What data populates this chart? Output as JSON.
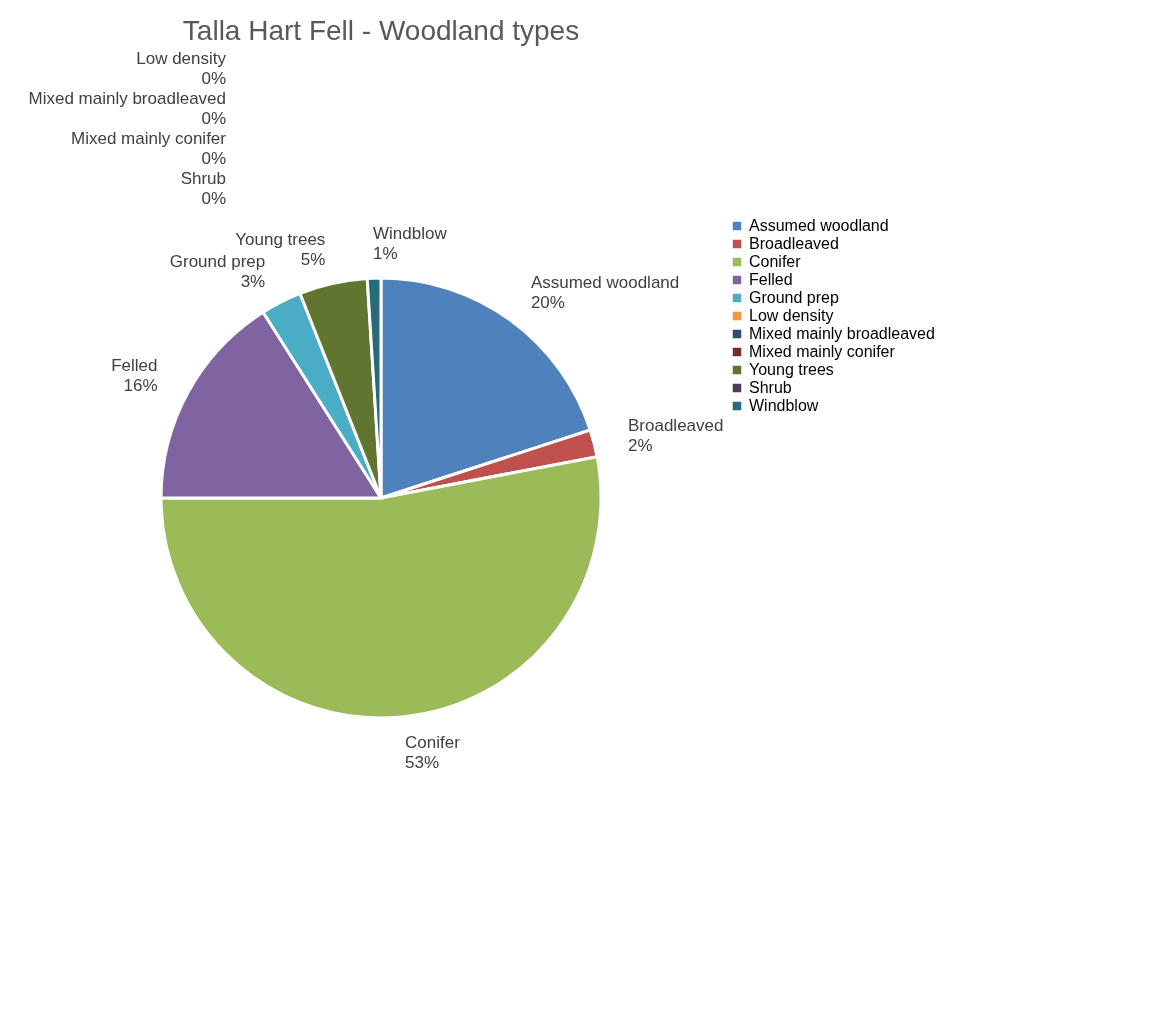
{
  "chart_data": {
    "type": "pie",
    "title": "Talla Hart Fell - Woodland types",
    "categories": [
      "Assumed woodland",
      "Broadleaved",
      "Conifer",
      "Felled",
      "Ground prep",
      "Low density",
      "Mixed mainly broadleaved",
      "Mixed mainly conifer",
      "Young trees",
      "Shrub",
      "Windblow"
    ],
    "values": [
      20,
      2,
      53,
      16,
      3,
      0,
      0,
      0,
      5,
      0,
      1
    ],
    "value_labels": [
      "20%",
      "2%",
      "53%",
      "16%",
      "3%",
      "0%",
      "0%",
      "0%",
      "5%",
      "0%",
      "1%"
    ],
    "colors": [
      "#4f81bd",
      "#c0504d",
      "#9bbb59",
      "#8064a2",
      "#4bacc6",
      "#f79646",
      "#2c4d75",
      "#772c2a",
      "#5f7530",
      "#4d3b62",
      "#276a7c"
    ],
    "legend": "right"
  }
}
